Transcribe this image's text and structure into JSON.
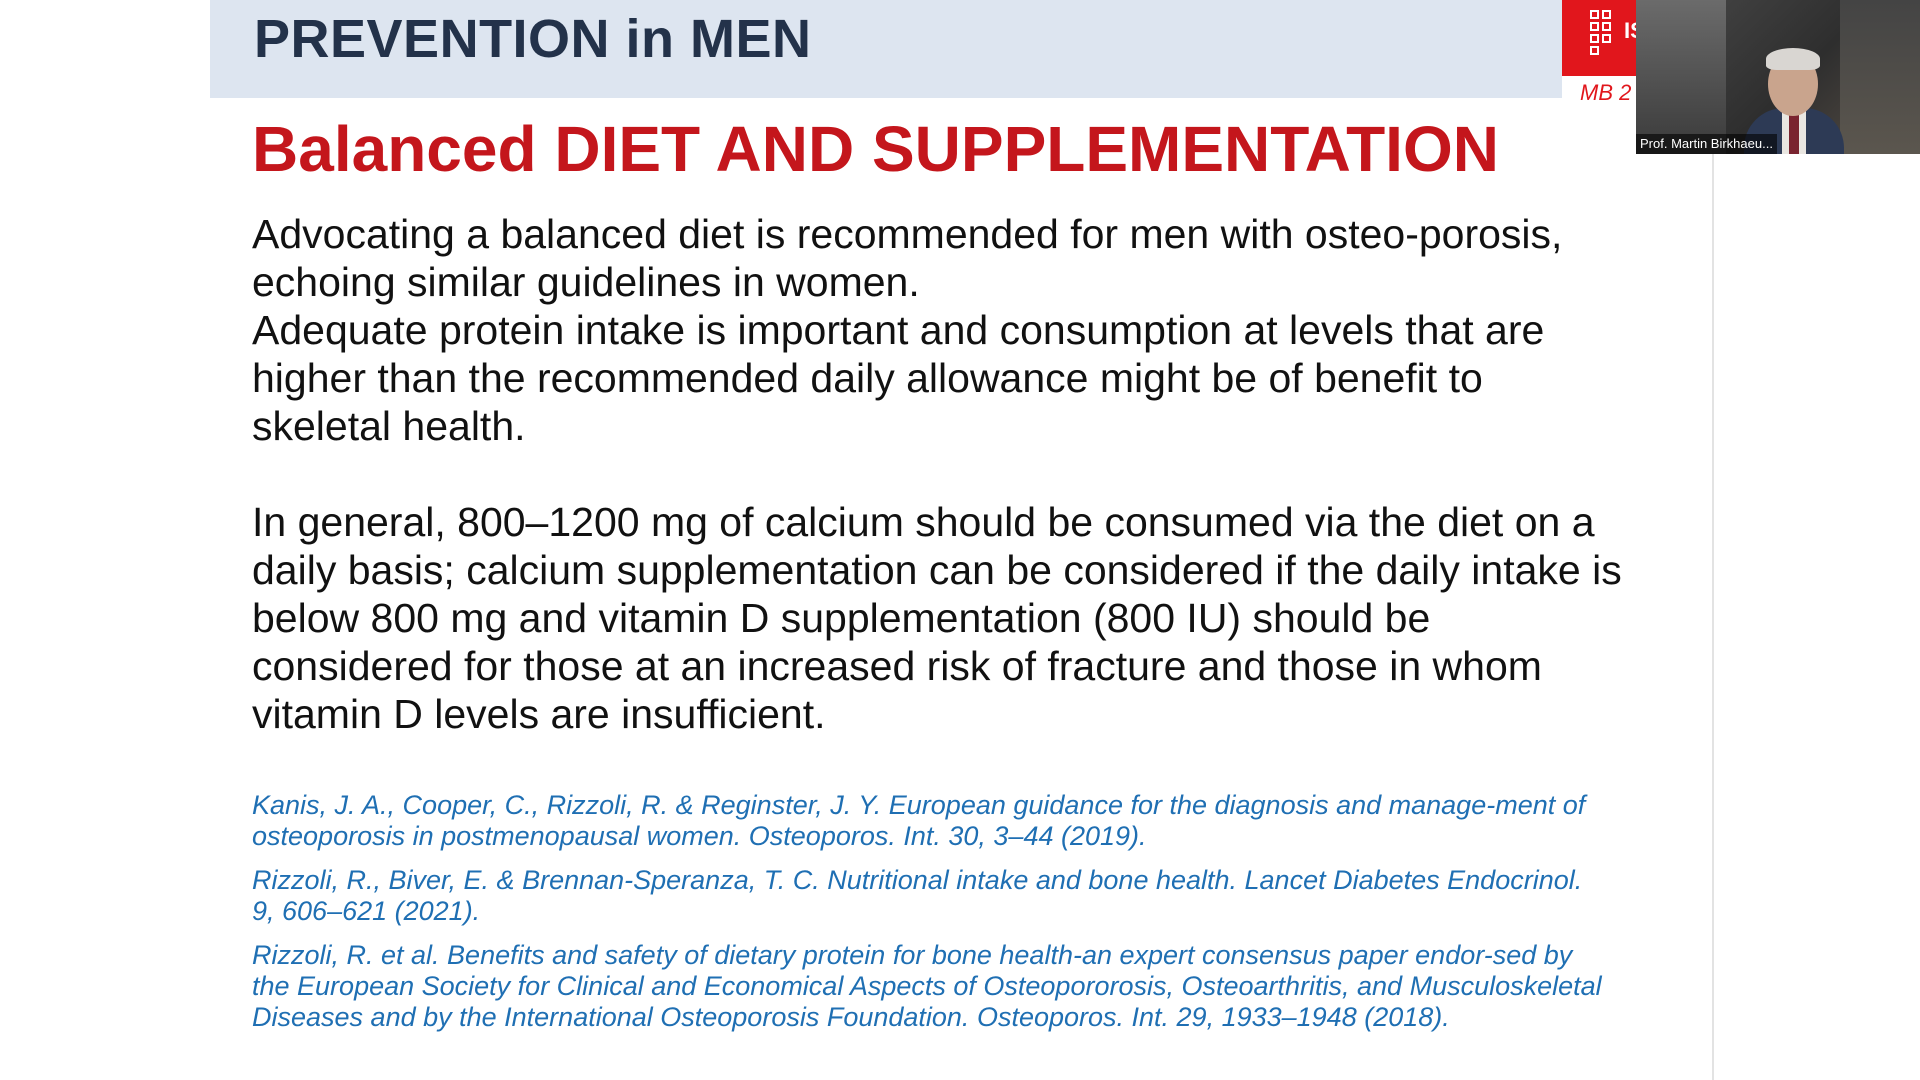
{
  "slide": {
    "header_title": "PREVENTION in MEN",
    "logo_mark": "IS",
    "footer_tag": "MB 2",
    "heading_lead": "Balanced",
    "heading_rest": "DIET AND SUPPLEMENTATION",
    "paragraphs": [
      "Advocating a balanced diet is recommended for men with osteo-porosis, echoing similar guidelines in women.",
      "Adequate protein intake is important and consumption at levels that are higher than the recommended daily allowance might be of benefit to skeletal health.",
      "In general, 800–1200 mg of calcium should be consumed via the diet on a daily basis; calcium supplementation can be considered if the daily intake is below 800 mg and vitamin D supplementation (800 IU) should be considered for those at an increased risk of fracture and those in whom vitamin D levels are insufficient."
    ],
    "references": [
      "Kanis, J. A., Cooper, C., Rizzoli, R. & Reginster, J. Y. European guidance for the diagnosis and manage-ment of osteoporosis in postmenopausal women. Osteoporos. Int. 30, 3–44 (2019).",
      "Rizzoli, R., Biver, E. & Brennan-Speranza, T. C. Nutritional intake and bone health. Lancet Diabetes Endocrinol. 9, 606–621 (2021).",
      "Rizzoli, R. et al. Benefits and safety of dietary protein for bone health-an expert consensus paper endor-sed by the European Society for Clinical and Economical Aspects of Osteopororosis, Osteoarthritis, and Musculoskeletal Diseases and by the International Osteoporosis Foundation. Osteoporos. Int. 29, 1933–1948 (2018)."
    ]
  },
  "video": {
    "participant_name": "Prof. Martin Birkhaeu..."
  },
  "colors": {
    "header_band": "#dde5f0",
    "header_text": "#23324a",
    "heading_red": "#c4161c",
    "logo_red": "#e1161c",
    "reference_blue": "#1f6fb3",
    "body_text": "#111111"
  }
}
